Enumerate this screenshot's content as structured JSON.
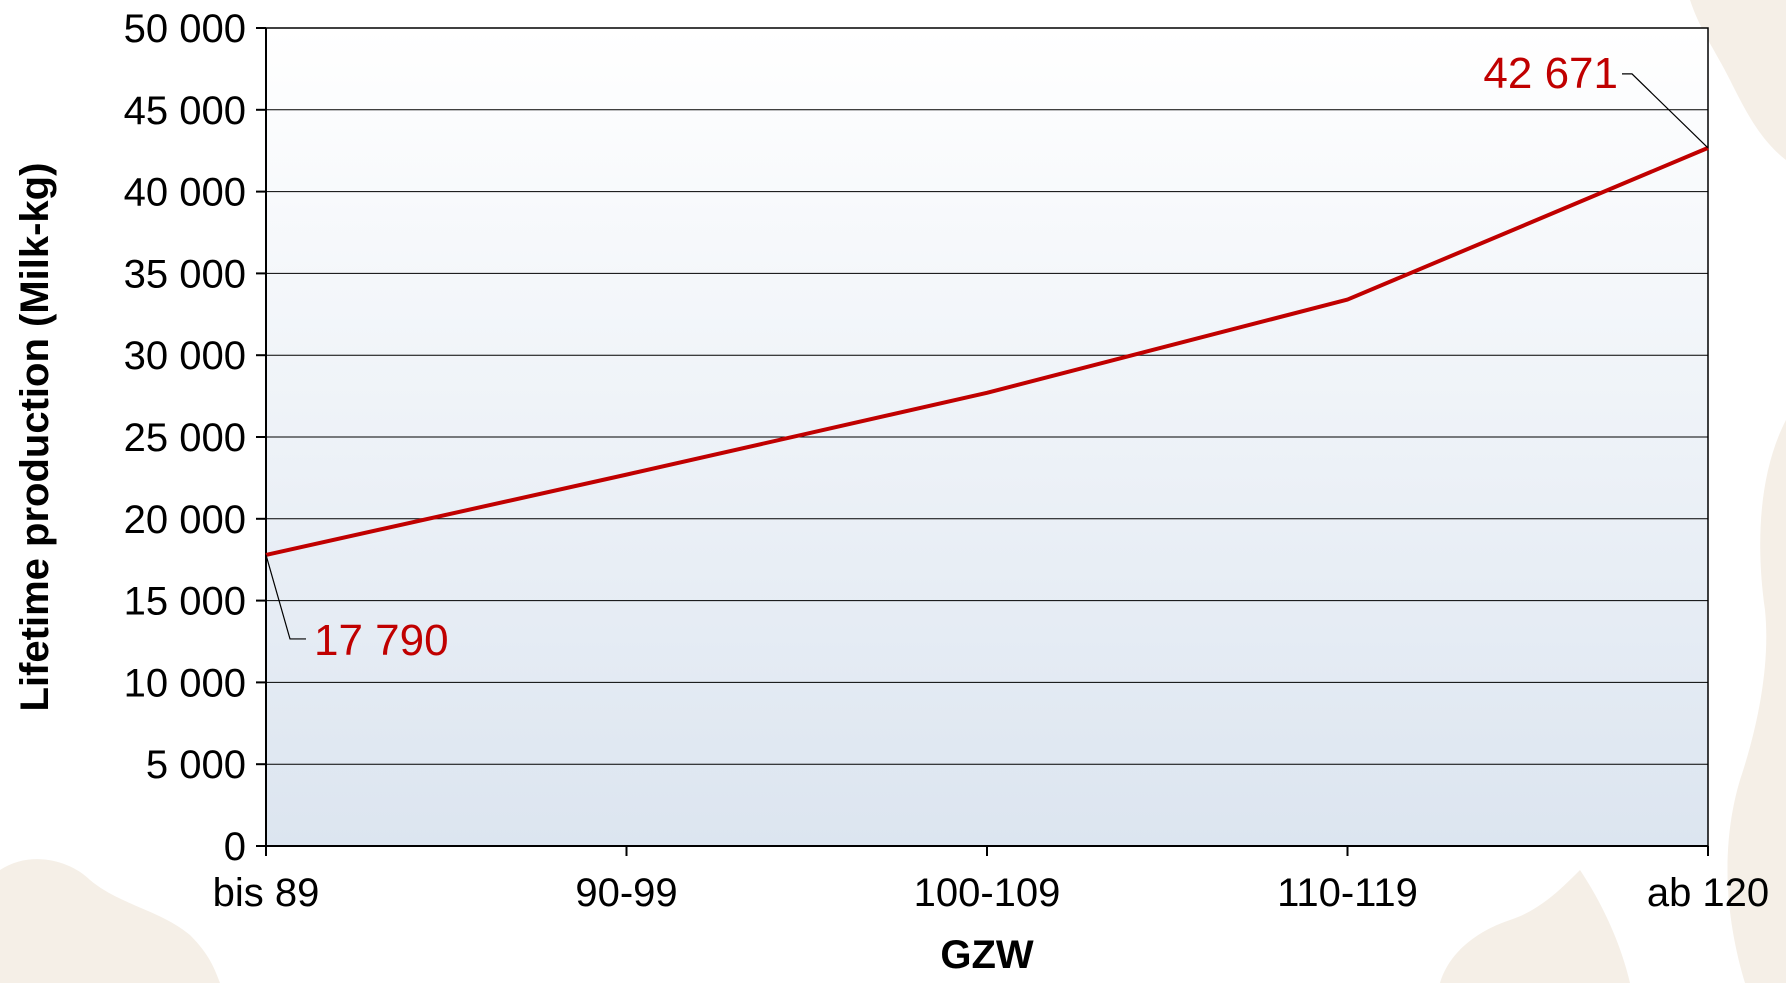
{
  "chart_data": {
    "type": "line",
    "categories": [
      "bis 89",
      "90-99",
      "100-109",
      "110-119",
      "ab 120"
    ],
    "series": [
      {
        "values": [
          17790,
          22700,
          27700,
          33400,
          42671
        ],
        "color": "#c00000"
      }
    ],
    "data_labels": [
      {
        "index": 0,
        "text": "17 790"
      },
      {
        "index": 4,
        "text": "42 671"
      }
    ],
    "yticks": [
      "0",
      "5 000",
      "10 000",
      "15 000",
      "20 000",
      "25 000",
      "30 000",
      "35 000",
      "40 000",
      "45 000",
      "50 000"
    ],
    "ylim": [
      0,
      50000
    ],
    "ystep": 5000,
    "xlabel": "GZW",
    "ylabel": "Lifetime production (Milk-kg)",
    "grid": true,
    "legend": "none",
    "colors": {
      "line": "#c00000",
      "label": "#c00000",
      "plot_top": "#ffffff",
      "plot_bottom": "#dce5f0",
      "gridline": "#000000",
      "background_blob": "#f5efe7"
    }
  }
}
